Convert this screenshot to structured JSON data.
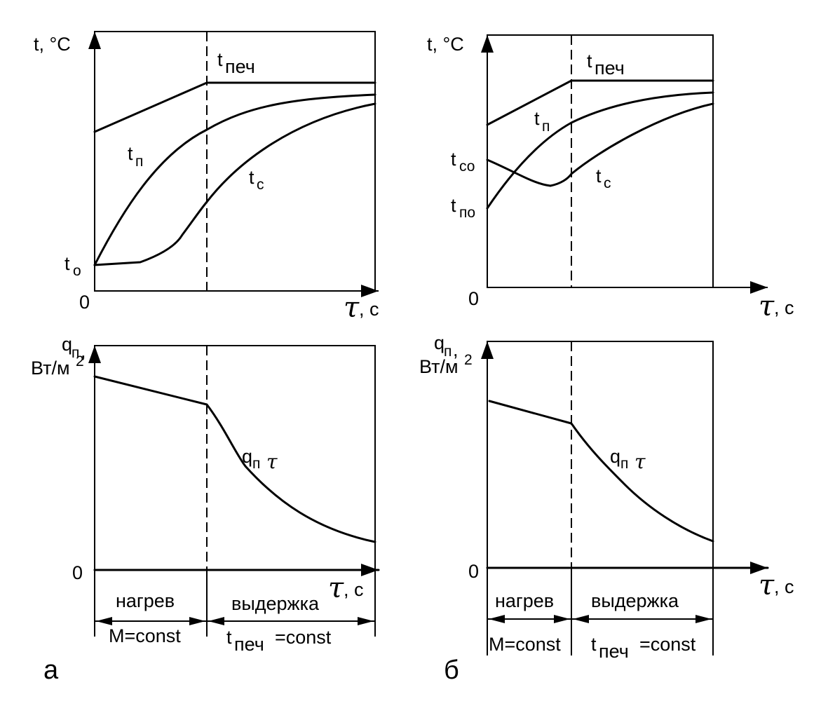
{
  "panels": [
    {
      "id": "a",
      "letter": "а",
      "temp_axis_label": "t, °C",
      "zero_label": "0",
      "tau_symbol": "τ",
      "tau_unit": ", с",
      "t0_label": "t",
      "t0_sub": "о",
      "furnace_label": "t",
      "furnace_sub": "печ",
      "surface_label": "t",
      "surface_sub": "п",
      "center_label": "t",
      "center_sub": "с",
      "q_axis_label_1": "q",
      "q_axis_label_1_sub": "п",
      "q_axis_label_1_after": ",",
      "q_axis_label_2": "Вт/м",
      "q_axis_label_2_sup": "2",
      "q_zero_label": "0",
      "q_curve_label": "q",
      "q_curve_sub": "п",
      "q_curve_tau": "τ",
      "stage_heating": "нагрев",
      "stage_holding": "выдержка",
      "cond_heating": "M=const",
      "cond_holding_t": "t",
      "cond_holding_sub": "печ",
      "cond_holding_after": "=const"
    },
    {
      "id": "b",
      "letter": "б",
      "temp_axis_label": "t, °C",
      "zero_label": "0",
      "tau_symbol": "τ",
      "tau_unit": ", с",
      "tco_label": "t",
      "tco_sub": "со",
      "tpo_label": "t",
      "tpo_sub": "по",
      "furnace_label": "t",
      "furnace_sub": "печ",
      "surface_label": "t",
      "surface_sub": "п",
      "center_label": "t",
      "center_sub": "с",
      "q_axis_label_1": "q",
      "q_axis_label_1_sub": "п",
      "q_axis_label_1_after": ",",
      "q_axis_label_2": "Вт/м",
      "q_axis_label_2_sup": "2",
      "q_zero_label": "0",
      "q_curve_label": "q",
      "q_curve_sub": "п",
      "q_curve_tau": "τ",
      "stage_heating": "нагрев",
      "stage_holding": "выдержка",
      "cond_heating": "M=const",
      "cond_holding_t": "t",
      "cond_holding_sub": "печ",
      "cond_holding_after": "=const"
    }
  ]
}
